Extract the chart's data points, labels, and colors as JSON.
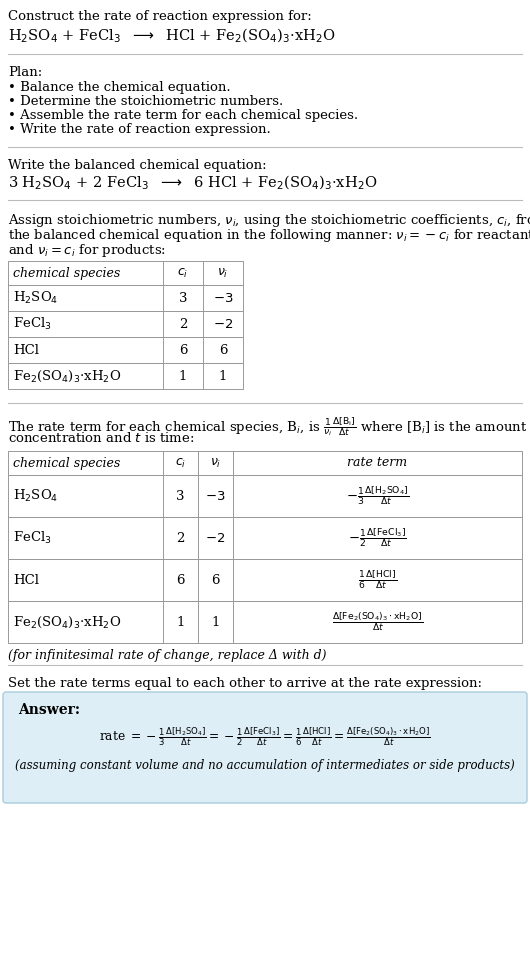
{
  "bg_color": "#ffffff",
  "text_color": "#000000",
  "answer_bg": "#ddeef6",
  "answer_border": "#aaccdd",
  "sections": {
    "title_line1": "Construct the rate of reaction expression for:",
    "title_eq": "H$_2$SO$_4$ + FeCl$_3$  $\\longrightarrow$  HCl + Fe$_2$(SO$_4$)$_3$·xH$_2$O",
    "plan_header": "Plan:",
    "plan_items": [
      "• Balance the chemical equation.",
      "• Determine the stoichiometric numbers.",
      "• Assemble the rate term for each chemical species.",
      "• Write the rate of reaction expression."
    ],
    "balanced_header": "Write the balanced chemical equation:",
    "balanced_eq": "3 H$_2$SO$_4$ + 2 FeCl$_3$  $\\longrightarrow$  6 HCl + Fe$_2$(SO$_4$)$_3$·xH$_2$O",
    "stoich_intro_lines": [
      "Assign stoichiometric numbers, $\\nu_i$, using the stoichiometric coefficients, $c_i$, from",
      "the balanced chemical equation in the following manner: $\\nu_i = -c_i$ for reactants",
      "and $\\nu_i = c_i$ for products:"
    ],
    "table1_col_headers": [
      "chemical species",
      "$c_i$",
      "$\\nu_i$"
    ],
    "table1_rows": [
      [
        "H$_2$SO$_4$",
        "3",
        "$-3$"
      ],
      [
        "FeCl$_3$",
        "2",
        "$-2$"
      ],
      [
        "HCl",
        "6",
        "6"
      ],
      [
        "Fe$_2$(SO$_4$)$_3$·xH$_2$O",
        "1",
        "1"
      ]
    ],
    "rate_intro_lines": [
      "The rate term for each chemical species, B$_i$, is $\\frac{1}{\\nu_i}\\frac{\\Delta[\\mathrm{B_i}]}{\\Delta t}$ where [B$_i$] is the amount",
      "concentration and $t$ is time:"
    ],
    "table2_col_headers": [
      "chemical species",
      "$c_i$",
      "$\\nu_i$",
      "rate term"
    ],
    "table2_rows": [
      [
        "H$_2$SO$_4$",
        "3",
        "$-3$",
        "$-\\frac{1}{3}\\frac{\\Delta[\\mathrm{H_2SO_4}]}{\\Delta t}$"
      ],
      [
        "FeCl$_3$",
        "2",
        "$-2$",
        "$-\\frac{1}{2}\\frac{\\Delta[\\mathrm{FeCl_3}]}{\\Delta t}$"
      ],
      [
        "HCl",
        "6",
        "6",
        "$\\frac{1}{6}\\frac{\\Delta[\\mathrm{HCl}]}{\\Delta t}$"
      ],
      [
        "Fe$_2$(SO$_4$)$_3$·xH$_2$O",
        "1",
        "1",
        "$\\frac{\\Delta[\\mathrm{Fe_2(SO_4)_3\\cdot xH_2O}]}{\\Delta t}$"
      ]
    ],
    "delta_note": "(for infinitesimal rate of change, replace Δ with d)",
    "set_header": "Set the rate terms equal to each other to arrive at the rate expression:",
    "answer_label": "Answer:",
    "answer_note": "(assuming constant volume and no accumulation of intermediates or side products)"
  }
}
